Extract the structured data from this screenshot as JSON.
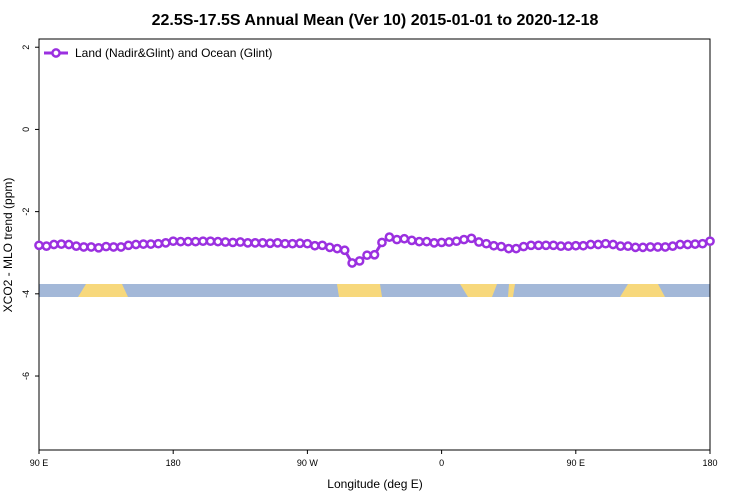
{
  "chart_data": {
    "type": "line",
    "title": "22.5S-17.5S Annual Mean (Ver 10)   2015-01-01 to 2020-12-18",
    "xlabel": "Longitude (deg E)",
    "ylabel": "XCO2 - MLO trend (ppm)",
    "x": [
      90,
      95,
      100,
      105,
      110,
      115,
      120,
      125,
      130,
      135,
      140,
      145,
      150,
      155,
      160,
      165,
      170,
      175,
      180,
      185,
      190,
      195,
      200,
      205,
      210,
      215,
      220,
      225,
      230,
      235,
      240,
      245,
      250,
      255,
      260,
      265,
      270,
      275,
      280,
      285,
      290,
      295,
      300,
      305,
      310,
      315,
      320,
      325,
      330,
      335,
      340,
      345,
      350,
      355,
      360,
      365,
      370,
      375,
      380,
      385,
      390,
      395,
      400,
      405,
      410,
      415,
      420,
      425,
      430,
      435,
      440,
      445,
      450,
      455,
      460,
      465,
      470,
      475,
      480,
      485,
      490,
      495,
      500,
      505,
      510,
      515,
      520,
      525,
      530,
      535,
      540
    ],
    "series": [
      {
        "name": "Land (Nadir&Glint) and Ocean (Glint)",
        "color": "#9b30e0",
        "values": [
          -2.82,
          -2.84,
          -2.8,
          -2.79,
          -2.8,
          -2.84,
          -2.86,
          -2.86,
          -2.88,
          -2.85,
          -2.86,
          -2.86,
          -2.82,
          -2.8,
          -2.79,
          -2.79,
          -2.78,
          -2.76,
          -2.72,
          -2.73,
          -2.73,
          -2.73,
          -2.72,
          -2.72,
          -2.73,
          -2.74,
          -2.75,
          -2.74,
          -2.76,
          -2.76,
          -2.76,
          -2.77,
          -2.76,
          -2.78,
          -2.78,
          -2.77,
          -2.78,
          -2.83,
          -2.82,
          -2.87,
          -2.9,
          -2.94,
          -3.25,
          -3.2,
          -3.06,
          -3.05,
          -2.75,
          -2.62,
          -2.68,
          -2.66,
          -2.7,
          -2.73,
          -2.73,
          -2.76,
          -2.75,
          -2.74,
          -2.72,
          -2.68,
          -2.65,
          -2.74,
          -2.78,
          -2.83,
          -2.85,
          -2.9,
          -2.9,
          -2.85,
          -2.82,
          -2.82,
          -2.82,
          -2.82,
          -2.84,
          -2.84,
          -2.83,
          -2.83,
          -2.8,
          -2.8,
          -2.78,
          -2.8,
          -2.84,
          -2.84,
          -2.87,
          -2.87,
          -2.86,
          -2.86,
          -2.86,
          -2.84,
          -2.8,
          -2.8,
          -2.79,
          -2.78,
          -2.72
        ]
      }
    ],
    "xlim": [
      90,
      540
    ],
    "xticks": [
      {
        "value": 90,
        "label": "90 E"
      },
      180,
      {
        "value": 270,
        "label": "90 W"
      },
      {
        "value": 360,
        "label": "0"
      },
      {
        "value": 450,
        "label": "90 E"
      },
      {
        "value": 540,
        "label": "180"
      }
    ],
    "ylim": [
      -7.8,
      2.2
    ],
    "yticks": [
      -6,
      -4,
      -2,
      0,
      2
    ],
    "legend": "upper left"
  }
}
